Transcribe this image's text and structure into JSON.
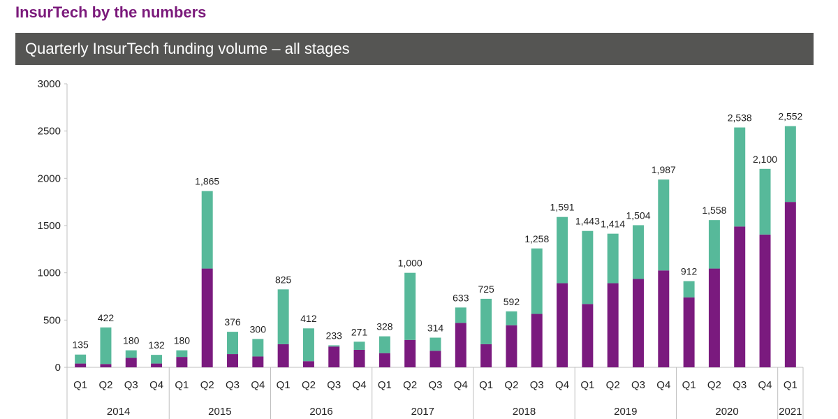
{
  "header": {
    "title": "InsurTech by the numbers",
    "banner": "Quarterly InsurTech funding volume – all stages"
  },
  "colors": {
    "title": "#7b1a7b",
    "banner_bg": "#555553",
    "lower_segment": "#7a1a7e",
    "upper_segment": "#57b99a",
    "axis": "#bfbfbf",
    "text": "#222222"
  },
  "chart_data": {
    "type": "bar",
    "stacked": true,
    "ylim": [
      0,
      3000
    ],
    "yticks": [
      0,
      500,
      1000,
      1500,
      2000,
      2500,
      3000
    ],
    "categories": [
      "Q1",
      "Q2",
      "Q3",
      "Q4",
      "Q1",
      "Q2",
      "Q3",
      "Q4",
      "Q1",
      "Q2",
      "Q3",
      "Q4",
      "Q1",
      "Q2",
      "Q3",
      "Q4",
      "Q1",
      "Q2",
      "Q3",
      "Q4",
      "Q1",
      "Q2",
      "Q3",
      "Q4",
      "Q1",
      "Q2",
      "Q3",
      "Q4",
      "Q1"
    ],
    "year_groups": [
      {
        "label": "2014",
        "count": 4
      },
      {
        "label": "2015",
        "count": 4
      },
      {
        "label": "2016",
        "count": 4
      },
      {
        "label": "2017",
        "count": 4
      },
      {
        "label": "2018",
        "count": 4
      },
      {
        "label": "2019",
        "count": 4
      },
      {
        "label": "2020",
        "count": 4
      },
      {
        "label": "2021",
        "count": 1
      }
    ],
    "totals": [
      135,
      422,
      180,
      132,
      180,
      1865,
      376,
      300,
      825,
      412,
      233,
      271,
      328,
      1000,
      314,
      633,
      725,
      592,
      1258,
      1591,
      1443,
      1414,
      1504,
      1987,
      912,
      1558,
      2538,
      2100,
      2552
    ],
    "total_labels": [
      "135",
      "422",
      "180",
      "132",
      "180",
      "1,865",
      "376",
      "300",
      "825",
      "412",
      "233",
      "271",
      "328",
      "1,000",
      "314",
      "633",
      "725",
      "592",
      "1,258",
      "1,591",
      "1,443",
      "1,414",
      "1,504",
      "1,987",
      "912",
      "1,558",
      "2,538",
      "2,100",
      "2,552"
    ],
    "lower_values": [
      40,
      35,
      100,
      40,
      110,
      1045,
      140,
      115,
      245,
      65,
      220,
      185,
      150,
      290,
      175,
      470,
      245,
      445,
      565,
      890,
      670,
      890,
      935,
      1025,
      740,
      1045,
      1490,
      1405,
      1750
    ],
    "grid": false,
    "legend": "none"
  }
}
